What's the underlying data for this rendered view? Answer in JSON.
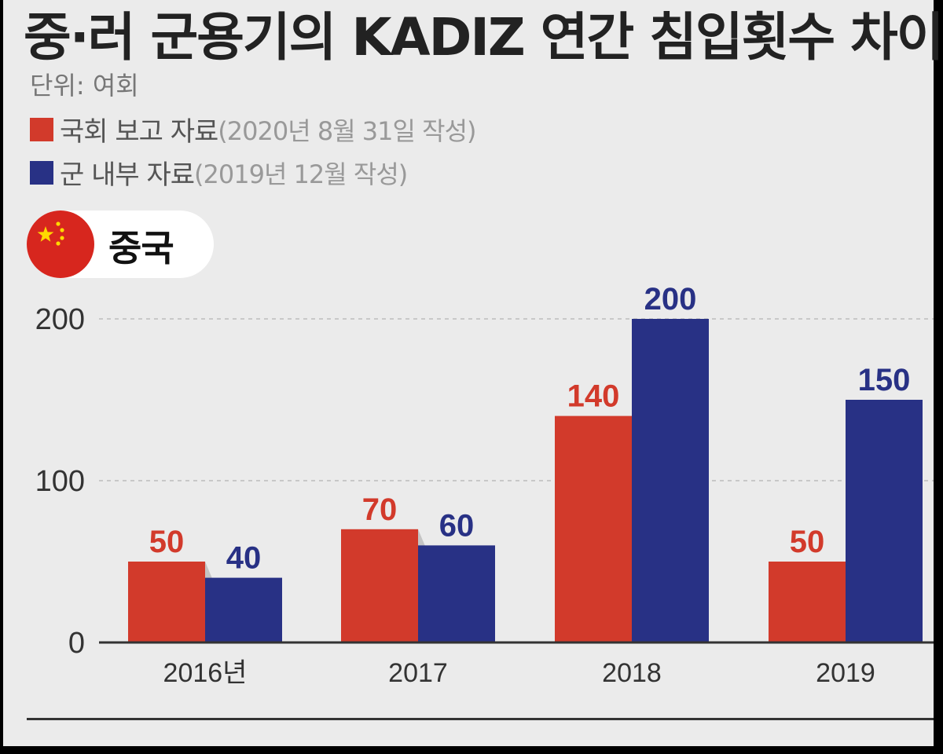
{
  "title": "중·러 군용기의 KADIZ 연간 침입횟수 차이",
  "unit_label": "단위: 여회",
  "legend": [
    {
      "label": "국회 보고 자료",
      "note": "(2020년 8월 31일 작성)",
      "color": "#d23a2b"
    },
    {
      "label": "군 내부 자료",
      "note": "(2019년 12월 작성)",
      "color": "#283185"
    }
  ],
  "country": {
    "label": "중국",
    "flag_icon": "china-flag-icon"
  },
  "chart_data": {
    "type": "bar",
    "categories": [
      "2016년",
      "2017",
      "2018",
      "2019"
    ],
    "series": [
      {
        "name": "국회 보고 자료",
        "values": [
          50,
          70,
          140,
          50
        ],
        "color": "#d23a2b"
      },
      {
        "name": "군 내부 자료",
        "values": [
          40,
          60,
          200,
          150
        ],
        "color": "#283185"
      }
    ],
    "yticks": [
      0,
      100,
      200
    ],
    "ylim": [
      0,
      200
    ],
    "gridlines": "dashed at 100 and 200",
    "title": "중국",
    "xlabel": "",
    "ylabel": ""
  }
}
